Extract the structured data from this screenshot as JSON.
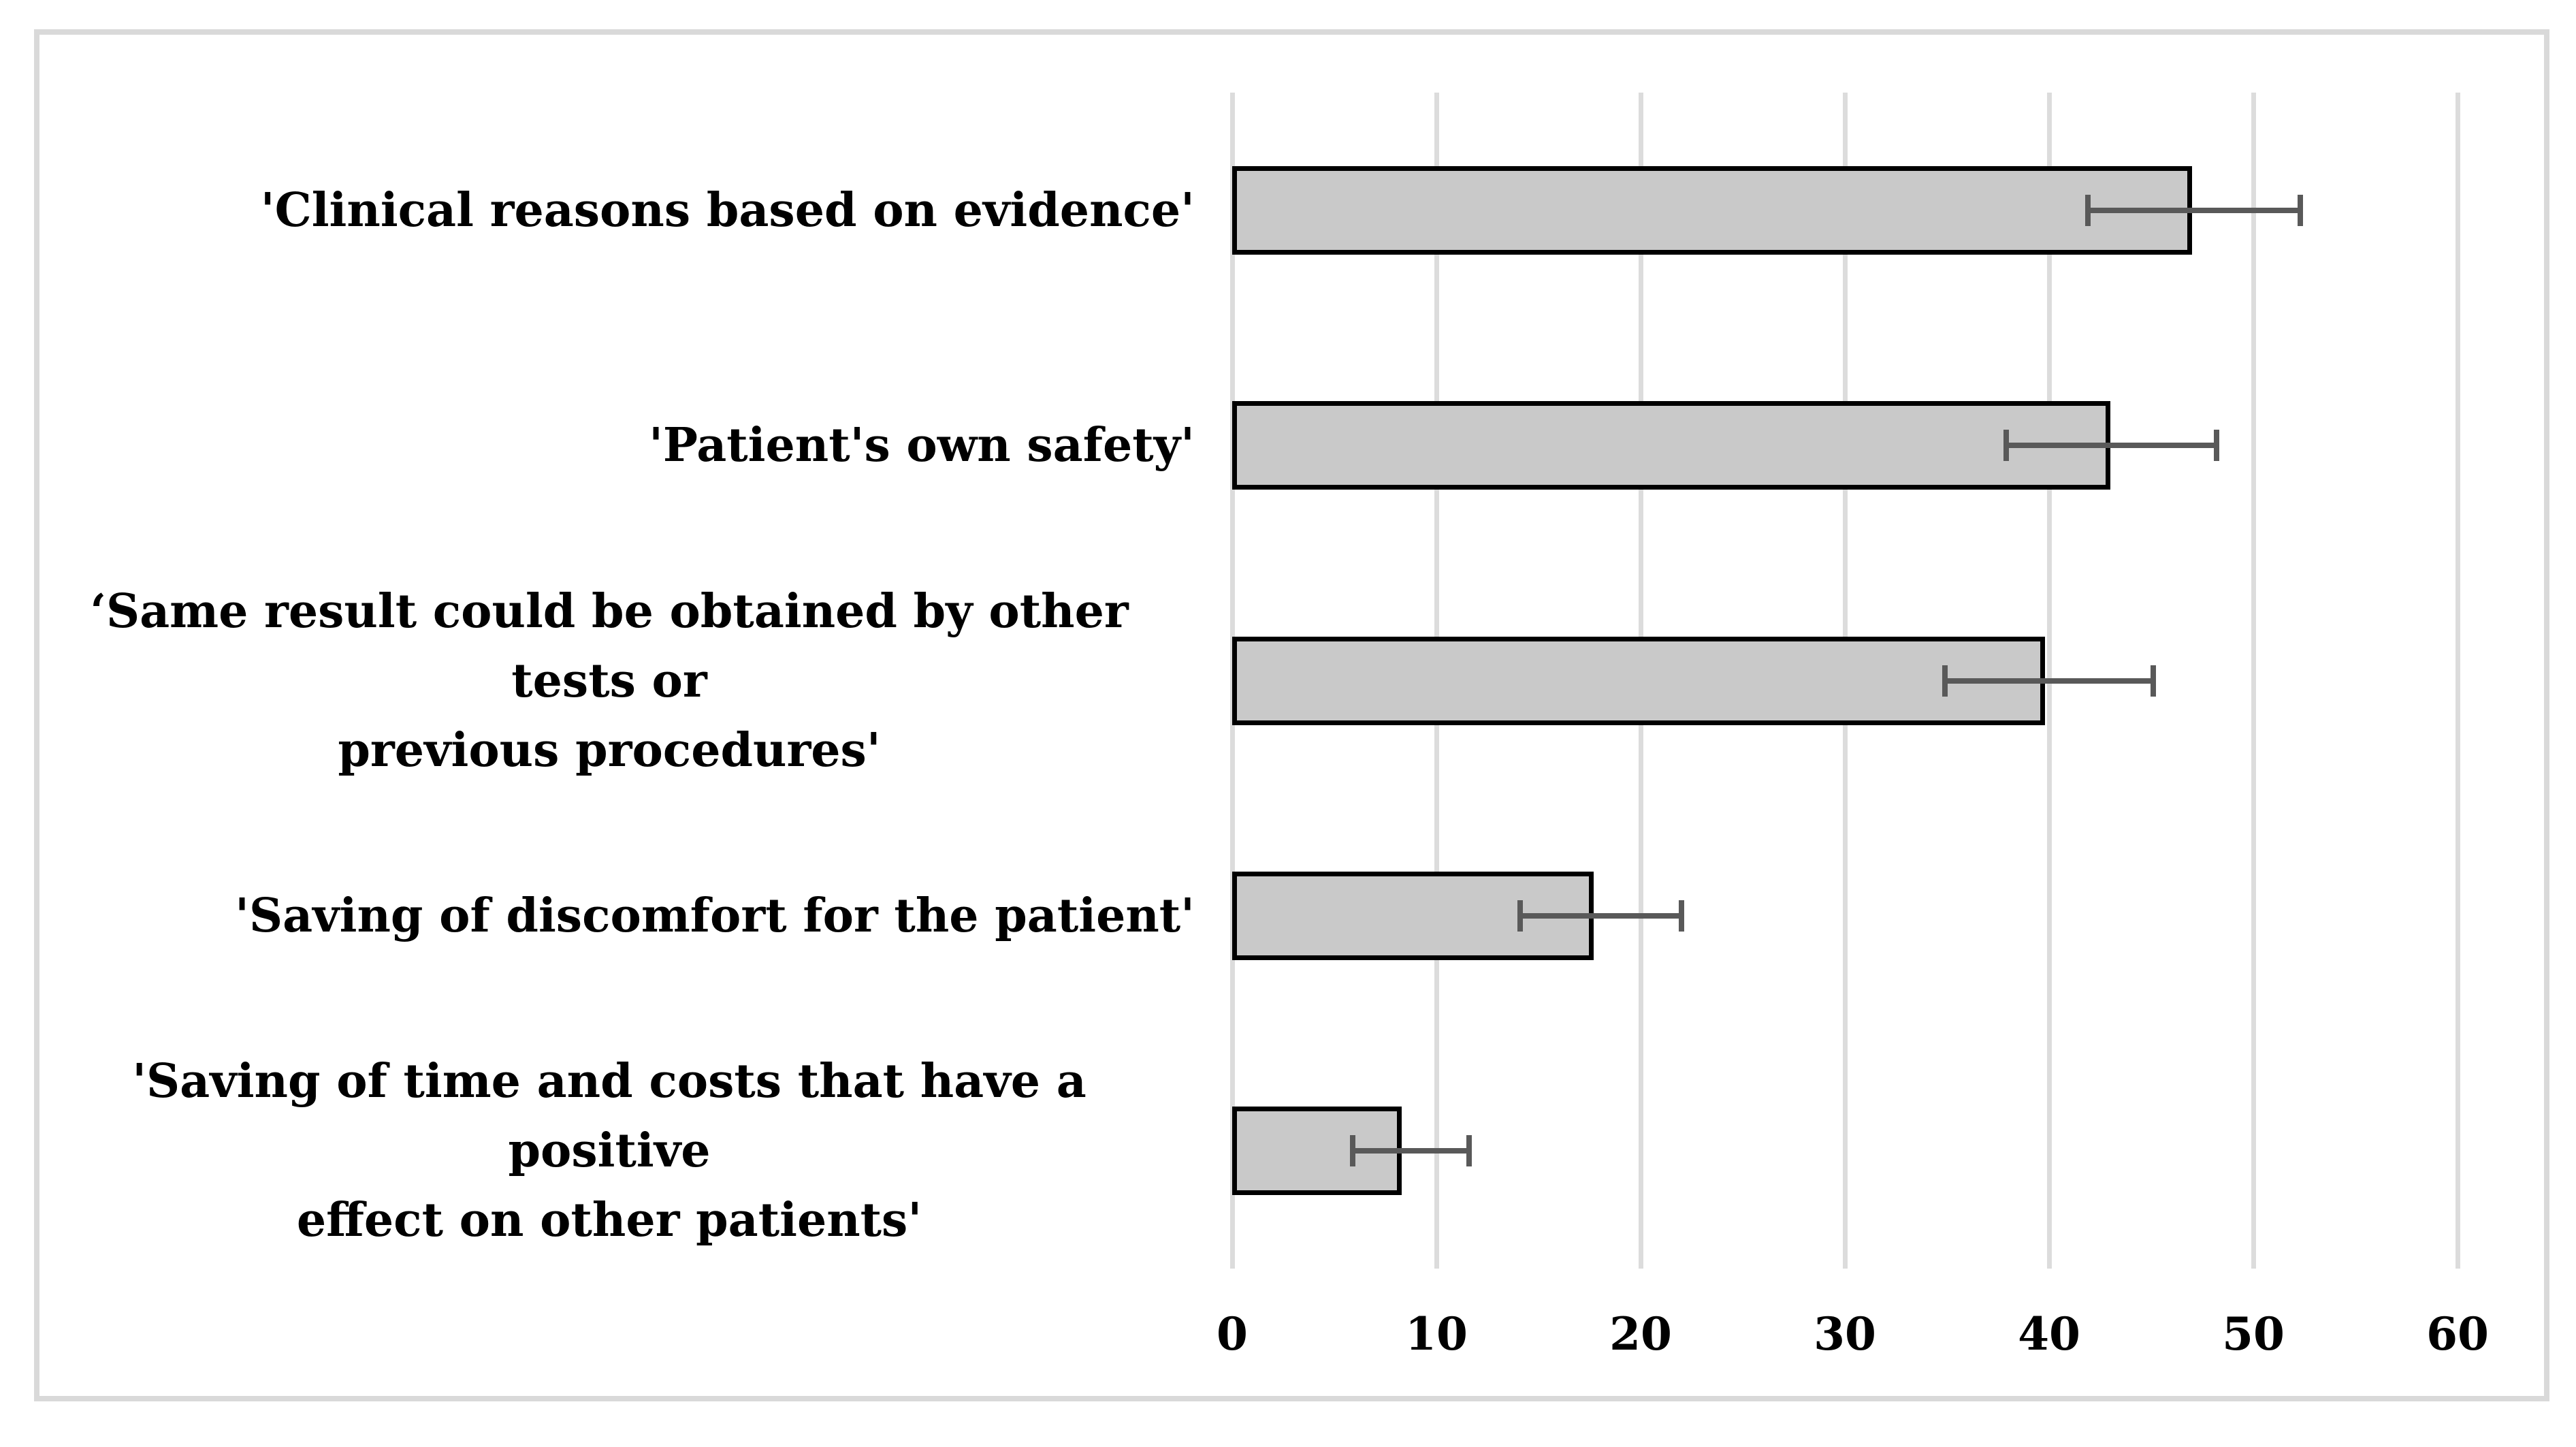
{
  "chart_data": {
    "type": "bar",
    "orientation": "horizontal",
    "title": "",
    "xlabel": "",
    "ylabel": "",
    "xlim": [
      0,
      60
    ],
    "xticks": [
      0,
      10,
      20,
      30,
      40,
      50,
      60
    ],
    "grid": "vertical-gridlines-on",
    "legend": "none",
    "categories": [
      "'Clinical reasons based on evidence'",
      "'Patient's own safety'",
      "‘Same result could be obtained by other tests or\nprevious procedures'",
      "'Saving of discomfort for the patient'",
      "'Saving of time and costs that have a positive\neffect on other patients'"
    ],
    "values": [
      47.0,
      43.0,
      39.8,
      17.7,
      8.3
    ],
    "error_low": [
      41.9,
      37.9,
      34.9,
      14.1,
      5.9
    ],
    "error_high": [
      52.3,
      48.2,
      45.1,
      22.0,
      11.6
    ],
    "colors": {
      "bar_fill": "#c9c9c9",
      "bar_border": "#000000",
      "error_bar": "#595959",
      "gridline": "#dcdcdc",
      "frame_border": "#d9d9d9",
      "background": "#ffffff",
      "text": "#000000"
    }
  }
}
